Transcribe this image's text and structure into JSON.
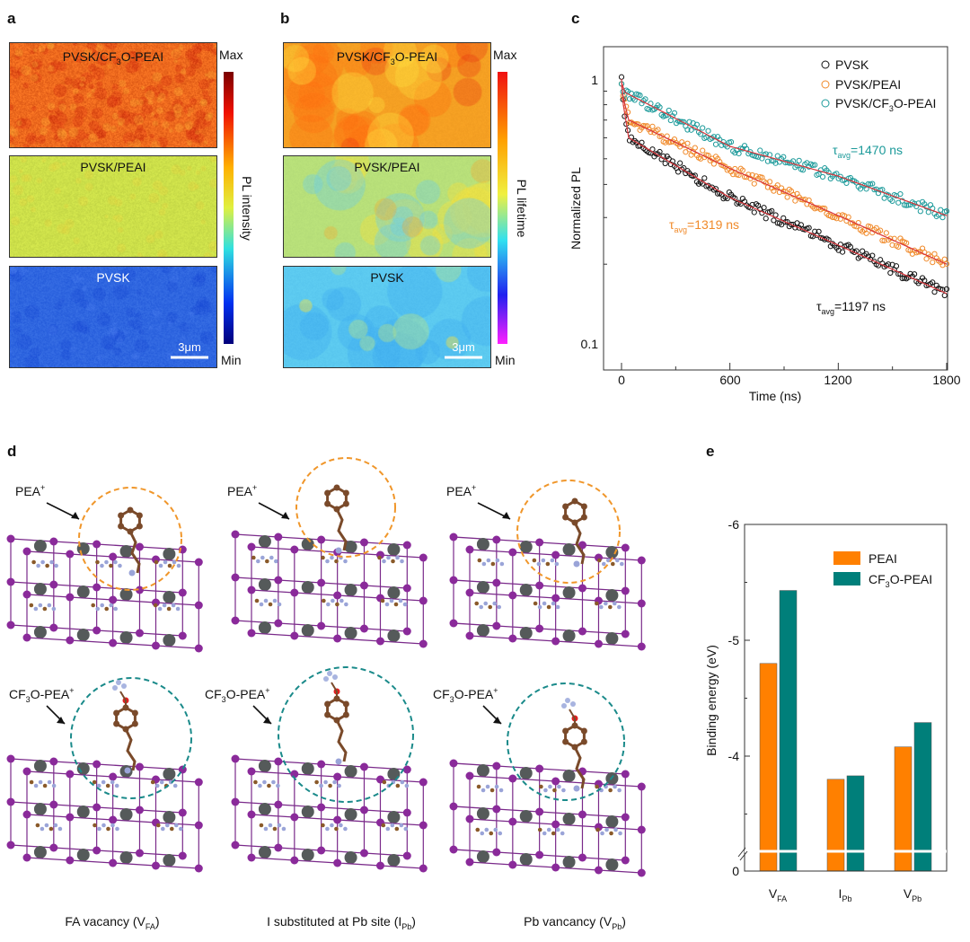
{
  "panels": {
    "a": "a",
    "b": "b",
    "c": "c",
    "d": "d",
    "e": "e"
  },
  "panel_a": {
    "maps": [
      {
        "label_pre": "PVSK/CF",
        "label_sub": "3",
        "label_post": "O-PEAI",
        "color": "#ee6a1e"
      },
      {
        "label": "PVSK/PEAI",
        "color": "#cde04a"
      },
      {
        "label": "PVSK",
        "color": "#2f66e0"
      }
    ],
    "colorbar": {
      "max": "Max",
      "min": "Min",
      "title": "PL intensity"
    },
    "scale_bar": "3μm"
  },
  "panel_b": {
    "maps": [
      {
        "label_pre": "PVSK/CF",
        "label_sub": "3",
        "label_post": "O-PEAI",
        "color": "#f5a023"
      },
      {
        "label": "PVSK/PEAI",
        "color": "#b8e07a"
      },
      {
        "label": "PVSK",
        "color": "#5ccaf0"
      }
    ],
    "colorbar": {
      "max": "Max",
      "min": "Min",
      "title": "PL lifetime"
    },
    "scale_bar": "3μm"
  },
  "chart_data": [
    {
      "type": "scatter",
      "title": "",
      "xlabel": "Time (ns)",
      "ylabel": "Normalized PL",
      "xlim": [
        -100,
        1800
      ],
      "ylim": [
        0.1,
        1.2
      ],
      "yscale": "log",
      "xticks": [
        "0",
        "600",
        "1200",
        "1800"
      ],
      "yticks": [
        "0.1",
        "1"
      ],
      "legend_position": "top-right",
      "series": [
        {
          "name": "PVSK",
          "color": "#111111",
          "tau_pre": "τ",
          "tau_sub": "avg",
          "tau_post": "=1197 ns",
          "fit_t": [
            0,
            10,
            40,
            600,
            1200,
            1800
          ],
          "fit_y": [
            1.0,
            0.8,
            0.6,
            0.357,
            0.236,
            0.155
          ]
        },
        {
          "name": "PVSK/PEAI",
          "color": "#f08a2a",
          "tau_pre": "τ",
          "tau_sub": "avg",
          "tau_post": "=1319 ns",
          "fit_t": [
            0,
            10,
            40,
            600,
            1200,
            1800
          ],
          "fit_y": [
            0.95,
            0.85,
            0.7,
            0.46,
            0.305,
            0.2
          ]
        },
        {
          "name_pre": "PVSK/CF",
          "name_sub": "3",
          "name_post": "O-PEAI",
          "name": "PVSK/CF3O-PEAI",
          "color": "#1c9a9a",
          "tau_pre": "τ",
          "tau_sub": "avg",
          "tau_post": "=1470 ns",
          "fit_t": [
            0,
            20,
            600,
            1200,
            1800
          ],
          "fit_y": [
            0.97,
            0.89,
            0.557,
            0.43,
            0.305
          ]
        }
      ]
    },
    {
      "type": "bar",
      "title": "",
      "xlabel": "",
      "ylabel": "Binding energy (eV)",
      "ylim": [
        0,
        -6
      ],
      "yticks": [
        "-6",
        "-5",
        "-4",
        "0"
      ],
      "axis_break": true,
      "categories": [
        {
          "main": "V",
          "sub": "FA"
        },
        {
          "main": "I",
          "sub": "Pb"
        },
        {
          "main": "V",
          "sub": "Pb"
        }
      ],
      "legend_position": "top-right",
      "series": [
        {
          "name": "PEAI",
          "color": "#ff8000",
          "values": [
            -4.8,
            -3.8,
            -4.08
          ]
        },
        {
          "name_pre": "CF",
          "name_sub": "3",
          "name_post": "O-PEAI",
          "name": "CF3O-PEAI",
          "color": "#007f7a",
          "values": [
            -5.43,
            -3.83,
            -4.29
          ]
        }
      ]
    }
  ],
  "panel_d": {
    "top_label": {
      "main": "PEA",
      "sup": "+"
    },
    "bottom_label": {
      "pre": "CF",
      "sub": "3",
      "post": "O-PEA",
      "sup": "+"
    },
    "captions": [
      {
        "main": "FA vacancy (V",
        "sub": "FA",
        "end": ")"
      },
      {
        "main": "I substituted at Pb site (I",
        "sub": "Pb",
        "end": ")"
      },
      {
        "main": "Pb vancancy (V",
        "sub": "Pb",
        "end": ")"
      }
    ],
    "circle_colors": {
      "top": "#f0962a",
      "bottom": "#1a8a8a"
    }
  }
}
